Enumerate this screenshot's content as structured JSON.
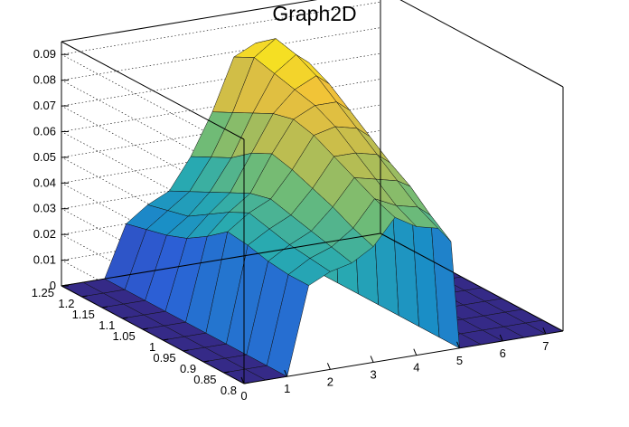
{
  "chart_data": {
    "type": "surface",
    "title": "Graph2D",
    "xlabel": "",
    "ylabel": "",
    "zlabel": "",
    "x_ticks": [
      "0",
      "1",
      "2",
      "3",
      "4",
      "5",
      "6",
      "7"
    ],
    "y_ticks": [
      "0.8",
      "0.85",
      "0.9",
      "0.95",
      "1",
      "1.05",
      "1.1",
      "1.15",
      "1.2",
      "1.25"
    ],
    "z_ticks": [
      "0",
      "0.01",
      "0.02",
      "0.03",
      "0.04",
      "0.05",
      "0.06",
      "0.07",
      "0.08",
      "0.09"
    ],
    "xlim": [
      0,
      7.4
    ],
    "ylim": [
      0.8,
      1.25
    ],
    "zlim": [
      0,
      0.095
    ],
    "grid": true,
    "colormap": [
      "#352a87",
      "#2c5fd6",
      "#1a8ec6",
      "#29aab0",
      "#6dbb78",
      "#b9bd52",
      "#f0c03a",
      "#f9fb0e"
    ],
    "grid_x": [
      0,
      0.5,
      1,
      1.5,
      2,
      2.5,
      3,
      3.5,
      4,
      4.5,
      4.8,
      5,
      5.5,
      6,
      6.5,
      7,
      7.4
    ],
    "grid_y": [
      0.8,
      0.85,
      0.9,
      0.95,
      1,
      1.05,
      1.1,
      1.15,
      1.2,
      1.25
    ],
    "z_values": [
      [
        0.0,
        0.0,
        0.0,
        0.0,
        0.0,
        0.0,
        0.0,
        0.0,
        0.0,
        0.0
      ],
      [
        0.0,
        0.0,
        0.0,
        0.0,
        0.0,
        0.0,
        0.0,
        0.0,
        0.0,
        0.0
      ],
      [
        0.0,
        0.0,
        0.0,
        0.0,
        0.0,
        0.0,
        0.0,
        0.0,
        0.0,
        0.0
      ],
      [
        0.034,
        0.034,
        0.035,
        0.037,
        0.038,
        0.032,
        0.027,
        0.024,
        0.022,
        0.02
      ],
      [
        0.038,
        0.039,
        0.04,
        0.042,
        0.044,
        0.04,
        0.035,
        0.03,
        0.028,
        0.026
      ],
      [
        0.04,
        0.042,
        0.044,
        0.046,
        0.048,
        0.046,
        0.042,
        0.038,
        0.034,
        0.03
      ],
      [
        0.045,
        0.048,
        0.052,
        0.055,
        0.058,
        0.06,
        0.056,
        0.05,
        0.046,
        0.042
      ],
      [
        0.055,
        0.058,
        0.062,
        0.066,
        0.07,
        0.072,
        0.07,
        0.066,
        0.062,
        0.058
      ],
      [
        0.05,
        0.054,
        0.06,
        0.066,
        0.072,
        0.076,
        0.078,
        0.08,
        0.082,
        0.078
      ],
      [
        0.048,
        0.052,
        0.058,
        0.064,
        0.07,
        0.076,
        0.082,
        0.086,
        0.088,
        0.082
      ],
      [
        0.042,
        0.048,
        0.055,
        0.06,
        0.066,
        0.072,
        0.078,
        0.082,
        0.08,
        0.074
      ],
      [
        0.0,
        0.0,
        0.0,
        0.0,
        0.0,
        0.0,
        0.0,
        0.0,
        0.0,
        0.0
      ],
      [
        0.0,
        0.0,
        0.0,
        0.0,
        0.0,
        0.0,
        0.0,
        0.0,
        0.0,
        0.0
      ],
      [
        0.0,
        0.0,
        0.0,
        0.0,
        0.0,
        0.0,
        0.0,
        0.0,
        0.0,
        0.0
      ],
      [
        0.0,
        0.0,
        0.0,
        0.0,
        0.0,
        0.0,
        0.0,
        0.0,
        0.0,
        0.0
      ],
      [
        0.0,
        0.0,
        0.0,
        0.0,
        0.0,
        0.0,
        0.0,
        0.0,
        0.0,
        0.0
      ],
      [
        0.0,
        0.0,
        0.0,
        0.0,
        0.0,
        0.0,
        0.0,
        0.0,
        0.0,
        0.0
      ]
    ]
  }
}
